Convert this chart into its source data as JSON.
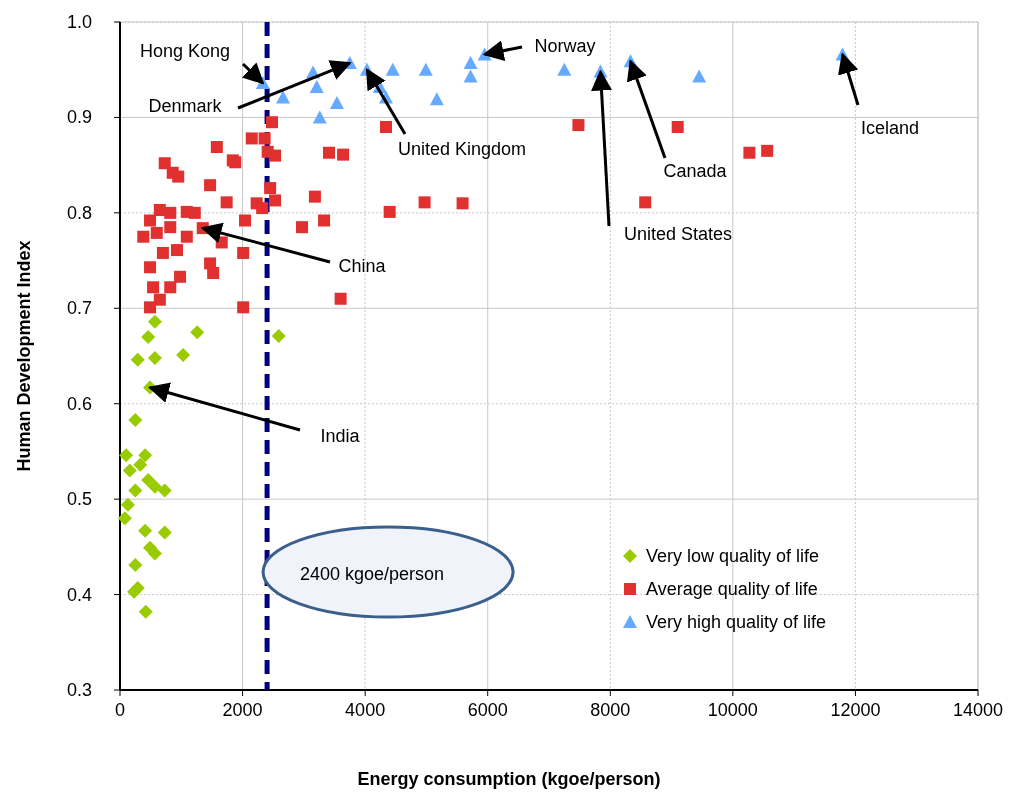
{
  "chart_data": {
    "type": "scatter",
    "xlabel": "Energy consumption (kgoe/person)",
    "ylabel": "Human Development Index",
    "xlim": [
      0,
      14000
    ],
    "xticks": [
      0,
      2000,
      4000,
      6000,
      8000,
      10000,
      12000,
      14000
    ],
    "ylim": [
      0.3,
      1.0
    ],
    "yticks": [
      {
        "value": 0.3,
        "label": "0.3"
      },
      {
        "value": 0.4,
        "label": "0.4"
      },
      {
        "value": 0.5,
        "label": "0.5"
      },
      {
        "value": 0.6,
        "label": "0.6"
      },
      {
        "value": 0.7,
        "label": "0.7"
      },
      {
        "value": 0.8,
        "label": "0.8"
      },
      {
        "value": 0.9,
        "label": "0.9"
      },
      {
        "value": 1.0,
        "label": "1.0"
      }
    ],
    "grid": true,
    "legend": "bottom right",
    "series": [
      {
        "name": "Very low quality of life",
        "color": "#99cc00",
        "marker": "diamond",
        "x": [
          570,
          460,
          570,
          290,
          1260,
          1030,
          2590,
          490,
          250,
          100,
          410,
          160,
          330,
          460,
          250,
          570,
          130,
          730,
          80,
          410,
          730,
          490,
          570,
          250,
          290,
          230,
          420
        ],
        "values": [
          0.686,
          0.67,
          0.648,
          0.646,
          0.675,
          0.651,
          0.671,
          0.617,
          0.583,
          0.546,
          0.546,
          0.53,
          0.536,
          0.52,
          0.509,
          0.513,
          0.494,
          0.509,
          0.48,
          0.467,
          0.465,
          0.449,
          0.443,
          0.431,
          0.407,
          0.403,
          0.382
        ]
      },
      {
        "name": "Average quality of life",
        "color": "#e03030",
        "marker": "square",
        "x": [
          2480,
          2360,
          2150,
          2410,
          2530,
          1580,
          1840,
          730,
          860,
          950,
          1470,
          1740,
          2450,
          2530,
          2320,
          3180,
          3330,
          2970,
          4400,
          4970,
          5590,
          8570,
          3410,
          3640,
          4340,
          7480,
          9100,
          10270,
          10560,
          3600,
          2040,
          2230,
          1090,
          1220,
          820,
          650,
          1350,
          1660,
          2010,
          380,
          600,
          700,
          490,
          930,
          1470,
          1520,
          980,
          820,
          540,
          650,
          490,
          2010,
          490,
          820,
          1090,
          1880
        ],
        "values": [
          0.895,
          0.878,
          0.878,
          0.864,
          0.86,
          0.869,
          0.855,
          0.852,
          0.842,
          0.838,
          0.829,
          0.811,
          0.826,
          0.813,
          0.805,
          0.817,
          0.792,
          0.785,
          0.801,
          0.811,
          0.81,
          0.811,
          0.863,
          0.861,
          0.89,
          0.892,
          0.89,
          0.863,
          0.865,
          0.71,
          0.792,
          0.81,
          0.801,
          0.8,
          0.8,
          0.803,
          0.784,
          0.769,
          0.758,
          0.775,
          0.779,
          0.758,
          0.743,
          0.761,
          0.747,
          0.737,
          0.733,
          0.722,
          0.722,
          0.709,
          0.701,
          0.701,
          0.792,
          0.785,
          0.775,
          0.853
        ]
      },
      {
        "name": "Very high quality of life",
        "color": "#66aaff",
        "marker": "triangle",
        "x": [
          2330,
          2660,
          3150,
          3210,
          3540,
          3260,
          3750,
          4030,
          4450,
          4240,
          4340,
          4990,
          5170,
          5720,
          5720,
          5950,
          7250,
          7840,
          8330,
          9450,
          11790
        ],
        "values": [
          0.936,
          0.921,
          0.947,
          0.932,
          0.915,
          0.9,
          0.957,
          0.95,
          0.95,
          0.932,
          0.921,
          0.95,
          0.919,
          0.957,
          0.943,
          0.966,
          0.95,
          0.948,
          0.959,
          0.943,
          0.966
        ]
      }
    ],
    "ref_lines": [
      {
        "axis": "x",
        "value": 2400,
        "label": "2400 kgoe/person",
        "color": "#000080",
        "line_style": "dashed"
      }
    ],
    "annotations": [
      {
        "text": "Hong Kong",
        "x": 2330,
        "y": 0.936
      },
      {
        "text": "Denmark",
        "x": 3750,
        "y": 0.957
      },
      {
        "text": "United Kingdom",
        "x": 4030,
        "y": 0.95
      },
      {
        "text": "Norway",
        "x": 5950,
        "y": 0.966
      },
      {
        "text": "United States",
        "x": 7840,
        "y": 0.948
      },
      {
        "text": "Canada",
        "x": 8330,
        "y": 0.959
      },
      {
        "text": "Iceland",
        "x": 11790,
        "y": 0.966
      },
      {
        "text": "China",
        "x": 1350,
        "y": 0.784
      },
      {
        "text": "India",
        "x": 490,
        "y": 0.617
      }
    ]
  }
}
